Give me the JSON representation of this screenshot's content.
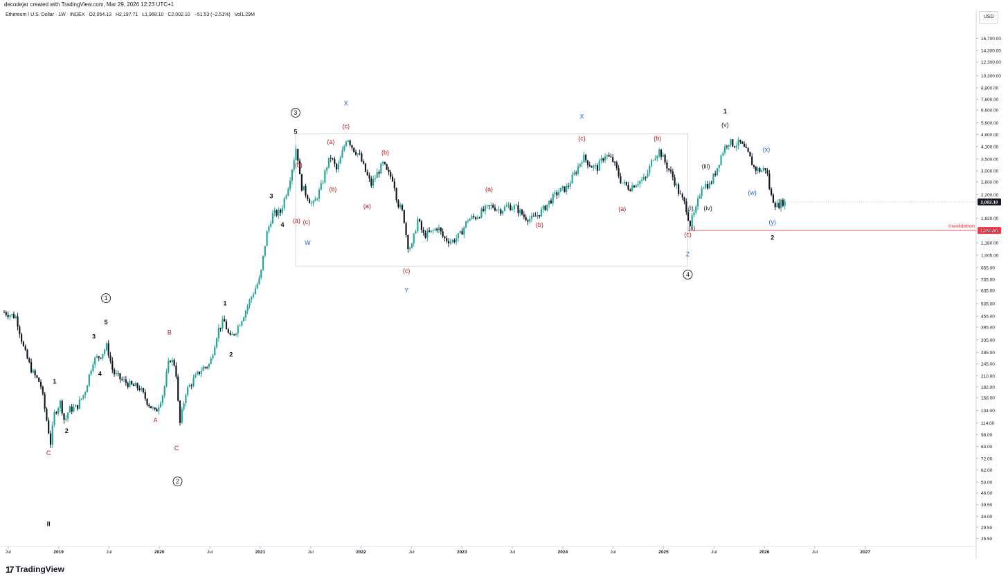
{
  "header": {
    "creator": "decodejar created with TradingView.com, Mar 29, 2026 12:23 UTC+1",
    "symbol": "Ethereum / U.S. Dollar · 1W · INDEX",
    "open": "O2,054.13",
    "high": "H2,197.71",
    "low": "L1,968.10",
    "close": "C2,002.10",
    "change": "−51.53 (−2.51%)",
    "volume": "Vol1.29M"
  },
  "currency_button": "USD",
  "brand": "TradingView",
  "colors": {
    "up_candle": "#26a69a",
    "down_candle": "#131722",
    "red_label": "#b71c1c",
    "blue_label": "#1e5bd6",
    "invalidation_line": "#f23645",
    "last_price_bg": "#131722",
    "box_stroke": "#c9ccd3"
  },
  "chart_data": {
    "type": "candlestick",
    "symbol": "Ethereum / U.S. Dollar",
    "interval": "1W",
    "y_scale": "log",
    "ylim": [
      23,
      21000
    ],
    "y_ticks": [
      {
        "v": 16700,
        "label": "16,700.00"
      },
      {
        "v": 14300,
        "label": "14,300.00"
      },
      {
        "v": 12300,
        "label": "12,300.00"
      },
      {
        "v": 10300,
        "label": "10,300.00"
      },
      {
        "v": 8800,
        "label": "8,800.00"
      },
      {
        "v": 7600,
        "label": "7,600.00"
      },
      {
        "v": 6600,
        "label": "6,600.00"
      },
      {
        "v": 5600,
        "label": "5,600.00"
      },
      {
        "v": 4800,
        "label": "4,800.00"
      },
      {
        "v": 4100,
        "label": "4,100.00"
      },
      {
        "v": 3500,
        "label": "3,500.00"
      },
      {
        "v": 3000,
        "label": "3,000.00"
      },
      {
        "v": 2600,
        "label": "2,600.00"
      },
      {
        "v": 2200,
        "label": "2,200.00"
      },
      {
        "v": 1620,
        "label": "1,620.00"
      },
      {
        "v": 1380,
        "label": "1,380.00"
      },
      {
        "v": 1180,
        "label": "1,180.00"
      },
      {
        "v": 1005,
        "label": "1,005.00"
      },
      {
        "v": 855,
        "label": "855.00"
      },
      {
        "v": 735,
        "label": "735.00"
      },
      {
        "v": 635,
        "label": "635.00"
      },
      {
        "v": 535,
        "label": "535.00"
      },
      {
        "v": 455,
        "label": "455.00"
      },
      {
        "v": 395,
        "label": "395.00"
      },
      {
        "v": 335,
        "label": "335.00"
      },
      {
        "v": 285,
        "label": "285.00"
      },
      {
        "v": 245,
        "label": "245.00"
      },
      {
        "v": 210,
        "label": "210.00"
      },
      {
        "v": 182,
        "label": "182.00"
      },
      {
        "v": 158,
        "label": "158.00"
      },
      {
        "v": 134,
        "label": "134.00"
      },
      {
        "v": 114,
        "label": "114.00"
      },
      {
        "v": 98,
        "label": "98.00"
      },
      {
        "v": 84,
        "label": "84.00"
      },
      {
        "v": 72,
        "label": "72.00"
      },
      {
        "v": 62,
        "label": "62.00"
      },
      {
        "v": 53,
        "label": "53.00"
      },
      {
        "v": 46,
        "label": "46.00"
      },
      {
        "v": 39.5,
        "label": "39.50"
      },
      {
        "v": 34,
        "label": "34.00"
      },
      {
        "v": 29.5,
        "label": "29.50"
      },
      {
        "v": 25.5,
        "label": "25.50"
      }
    ],
    "x_ticks": [
      {
        "t": 2018.5,
        "label": "Jul"
      },
      {
        "t": 2019.0,
        "label": "2019"
      },
      {
        "t": 2019.5,
        "label": "Jul"
      },
      {
        "t": 2020.0,
        "label": "2020"
      },
      {
        "t": 2020.5,
        "label": "Jul"
      },
      {
        "t": 2021.0,
        "label": "2021"
      },
      {
        "t": 2021.5,
        "label": "Jul"
      },
      {
        "t": 2022.0,
        "label": "2022"
      },
      {
        "t": 2022.5,
        "label": "Jul"
      },
      {
        "t": 2023.0,
        "label": "2023"
      },
      {
        "t": 2023.5,
        "label": "Jul"
      },
      {
        "t": 2024.0,
        "label": "2024"
      },
      {
        "t": 2024.5,
        "label": "Jul"
      },
      {
        "t": 2025.0,
        "label": "2025"
      },
      {
        "t": 2025.5,
        "label": "Jul"
      },
      {
        "t": 2026.0,
        "label": "2026"
      },
      {
        "t": 2026.5,
        "label": "Jul"
      },
      {
        "t": 2027.0,
        "label": "2027"
      }
    ],
    "xlim": [
      2018.46,
      2028.1
    ],
    "price_path": [
      [
        2018.46,
        480
      ],
      [
        2018.58,
        450
      ],
      [
        2018.66,
        290
      ],
      [
        2018.74,
        220
      ],
      [
        2018.82,
        190
      ],
      [
        2018.88,
        120
      ],
      [
        2018.92,
        88
      ],
      [
        2018.96,
        130
      ],
      [
        2019.02,
        150
      ],
      [
        2019.06,
        115
      ],
      [
        2019.1,
        135
      ],
      [
        2019.18,
        140
      ],
      [
        2019.26,
        170
      ],
      [
        2019.34,
        255
      ],
      [
        2019.42,
        275
      ],
      [
        2019.48,
        310
      ],
      [
        2019.54,
        220
      ],
      [
        2019.62,
        200
      ],
      [
        2019.72,
        185
      ],
      [
        2019.8,
        180
      ],
      [
        2019.88,
        150
      ],
      [
        2019.96,
        130
      ],
      [
        2020.04,
        170
      ],
      [
        2020.1,
        265
      ],
      [
        2020.16,
        240
      ],
      [
        2020.2,
        110
      ],
      [
        2020.26,
        170
      ],
      [
        2020.34,
        200
      ],
      [
        2020.42,
        230
      ],
      [
        2020.5,
        245
      ],
      [
        2020.58,
        380
      ],
      [
        2020.64,
        430
      ],
      [
        2020.7,
        340
      ],
      [
        2020.76,
        380
      ],
      [
        2020.84,
        470
      ],
      [
        2020.92,
        600
      ],
      [
        2021.0,
        750
      ],
      [
        2021.06,
        1300
      ],
      [
        2021.12,
        1700
      ],
      [
        2021.2,
        1750
      ],
      [
        2021.28,
        2500
      ],
      [
        2021.32,
        3200
      ],
      [
        2021.36,
        4200
      ],
      [
        2021.4,
        2500
      ],
      [
        2021.46,
        2200
      ],
      [
        2021.52,
        1900
      ],
      [
        2021.6,
        2400
      ],
      [
        2021.66,
        3200
      ],
      [
        2021.7,
        3600
      ],
      [
        2021.76,
        3000
      ],
      [
        2021.82,
        3900
      ],
      [
        2021.86,
        4700
      ],
      [
        2021.92,
        4000
      ],
      [
        2021.98,
        3700
      ],
      [
        2022.04,
        3000
      ],
      [
        2022.1,
        2500
      ],
      [
        2022.16,
        2900
      ],
      [
        2022.22,
        3300
      ],
      [
        2022.26,
        2900
      ],
      [
        2022.32,
        2700
      ],
      [
        2022.36,
        2000
      ],
      [
        2022.42,
        1700
      ],
      [
        2022.46,
        1150
      ],
      [
        2022.5,
        1100
      ],
      [
        2022.56,
        1600
      ],
      [
        2022.62,
        1300
      ],
      [
        2022.7,
        1350
      ],
      [
        2022.76,
        1450
      ],
      [
        2022.82,
        1250
      ],
      [
        2022.9,
        1200
      ],
      [
        2022.98,
        1300
      ],
      [
        2023.06,
        1600
      ],
      [
        2023.14,
        1650
      ],
      [
        2023.22,
        1800
      ],
      [
        2023.3,
        1900
      ],
      [
        2023.38,
        1800
      ],
      [
        2023.46,
        1900
      ],
      [
        2023.54,
        1850
      ],
      [
        2023.62,
        1650
      ],
      [
        2023.7,
        1600
      ],
      [
        2023.8,
        1800
      ],
      [
        2023.88,
        2050
      ],
      [
        2023.96,
        2300
      ],
      [
        2024.04,
        2400
      ],
      [
        2024.12,
        2900
      ],
      [
        2024.2,
        3600
      ],
      [
        2024.28,
        3200
      ],
      [
        2024.34,
        3100
      ],
      [
        2024.42,
        3700
      ],
      [
        2024.5,
        3400
      ],
      [
        2024.58,
        2600
      ],
      [
        2024.66,
        2400
      ],
      [
        2024.74,
        2600
      ],
      [
        2024.82,
        2700
      ],
      [
        2024.9,
        3600
      ],
      [
        2024.96,
        3900
      ],
      [
        2025.02,
        3300
      ],
      [
        2025.1,
        2700
      ],
      [
        2025.16,
        2200
      ],
      [
        2025.22,
        1900
      ],
      [
        2025.26,
        1500
      ],
      [
        2025.32,
        1800
      ],
      [
        2025.38,
        2500
      ],
      [
        2025.46,
        2500
      ],
      [
        2025.52,
        3000
      ],
      [
        2025.58,
        3800
      ],
      [
        2025.64,
        4400
      ],
      [
        2025.7,
        4200
      ],
      [
        2025.76,
        4300
      ],
      [
        2025.84,
        3700
      ],
      [
        2025.9,
        3100
      ],
      [
        2025.96,
        3000
      ],
      [
        2026.02,
        3100
      ],
      [
        2026.06,
        2200
      ],
      [
        2026.12,
        1900
      ],
      [
        2026.18,
        2000
      ],
      [
        2026.22,
        2002
      ]
    ],
    "last_price": {
      "value": 2002.1,
      "label": "2,002.10"
    },
    "invalidation": {
      "value": 1384.66,
      "label": "1,384.66",
      "text": "Invalidation",
      "from_t": 2025.24
    },
    "range_box": {
      "t0": 2021.35,
      "t1": 2025.24,
      "top": 4850,
      "bottom": 870
    },
    "labels": [
      {
        "t": 2018.9,
        "v": 30,
        "text": "II",
        "color": "black",
        "bold": true
      },
      {
        "t": 2018.9,
        "v": 75,
        "text": "C",
        "color": "red"
      },
      {
        "t": 2018.96,
        "v": 190,
        "text": "1",
        "color": "black",
        "bold": true
      },
      {
        "t": 2019.08,
        "v": 100,
        "text": "2",
        "color": "black",
        "bold": true
      },
      {
        "t": 2019.35,
        "v": 340,
        "text": "3",
        "color": "black",
        "bold": true
      },
      {
        "t": 2019.41,
        "v": 210,
        "text": "4",
        "color": "black",
        "bold": true
      },
      {
        "t": 2019.47,
        "v": 410,
        "text": "5",
        "color": "black",
        "bold": true
      },
      {
        "t": 2019.47,
        "v": 560,
        "text": "1",
        "color": "black",
        "circle": true
      },
      {
        "t": 2019.96,
        "v": 115,
        "text": "A",
        "color": "red"
      },
      {
        "t": 2020.1,
        "v": 360,
        "text": "B",
        "color": "red"
      },
      {
        "t": 2020.17,
        "v": 80,
        "text": "C",
        "color": "red"
      },
      {
        "t": 2020.18,
        "v": 52,
        "text": "2",
        "color": "black",
        "circle": true
      },
      {
        "t": 2020.65,
        "v": 525,
        "text": "1",
        "color": "black",
        "bold": true
      },
      {
        "t": 2020.71,
        "v": 270,
        "text": "2",
        "color": "black",
        "bold": true
      },
      {
        "t": 2021.11,
        "v": 2100,
        "text": "3",
        "color": "black",
        "bold": true
      },
      {
        "t": 2021.22,
        "v": 1450,
        "text": "4",
        "color": "black",
        "bold": true
      },
      {
        "t": 2021.35,
        "v": 4850,
        "text": "5",
        "color": "black",
        "bold": true
      },
      {
        "t": 2021.35,
        "v": 6200,
        "text": "3",
        "color": "black",
        "circle": true
      },
      {
        "t": 2021.38,
        "v": 3150,
        "text": "(b)",
        "color": "red"
      },
      {
        "t": 2021.36,
        "v": 1530,
        "text": "(a)",
        "color": "red"
      },
      {
        "t": 2021.46,
        "v": 1500,
        "text": "(c)",
        "color": "red"
      },
      {
        "t": 2021.47,
        "v": 1150,
        "text": "W",
        "color": "blue"
      },
      {
        "t": 2021.7,
        "v": 4250,
        "text": "(a)",
        "color": "red"
      },
      {
        "t": 2021.72,
        "v": 2300,
        "text": "(b)",
        "color": "red"
      },
      {
        "t": 2021.85,
        "v": 5200,
        "text": "(c)",
        "color": "red"
      },
      {
        "t": 2021.85,
        "v": 7000,
        "text": "X",
        "color": "blue"
      },
      {
        "t": 2022.24,
        "v": 3700,
        "text": "(b)",
        "color": "red"
      },
      {
        "t": 2022.06,
        "v": 1850,
        "text": "(a)",
        "color": "red"
      },
      {
        "t": 2022.45,
        "v": 800,
        "text": "(c)",
        "color": "red"
      },
      {
        "t": 2022.45,
        "v": 620,
        "text": "Y",
        "color": "blue"
      },
      {
        "t": 2023.27,
        "v": 2300,
        "text": "(a)",
        "color": "red"
      },
      {
        "t": 2023.77,
        "v": 1450,
        "text": "(b)",
        "color": "red"
      },
      {
        "t": 2024.19,
        "v": 4450,
        "text": "(c)",
        "color": "red"
      },
      {
        "t": 2024.19,
        "v": 5900,
        "text": "X",
        "color": "blue"
      },
      {
        "t": 2024.59,
        "v": 1780,
        "text": "(a)",
        "color": "red"
      },
      {
        "t": 2024.94,
        "v": 4450,
        "text": "(b)",
        "color": "red"
      },
      {
        "t": 2025.24,
        "v": 1280,
        "text": "(c)",
        "color": "red"
      },
      {
        "t": 2025.24,
        "v": 990,
        "text": "Z",
        "color": "blue"
      },
      {
        "t": 2025.24,
        "v": 760,
        "text": "4",
        "color": "black",
        "circle": true
      },
      {
        "t": 2025.27,
        "v": 1800,
        "text": "(i)",
        "color": "black"
      },
      {
        "t": 2025.28,
        "v": 1390,
        "text": "(ii)",
        "color": "black"
      },
      {
        "t": 2025.42,
        "v": 3100,
        "text": "(iii)",
        "color": "black"
      },
      {
        "t": 2025.44,
        "v": 1800,
        "text": "(iv)",
        "color": "black"
      },
      {
        "t": 2025.61,
        "v": 5300,
        "text": "(v)",
        "color": "black"
      },
      {
        "t": 2025.61,
        "v": 6300,
        "text": "1",
        "color": "black",
        "bold": true
      },
      {
        "t": 2025.88,
        "v": 2200,
        "text": "(w)",
        "color": "blue"
      },
      {
        "t": 2026.02,
        "v": 3850,
        "text": "(x)",
        "color": "blue"
      },
      {
        "t": 2026.08,
        "v": 1500,
        "text": "(y)",
        "color": "blue"
      },
      {
        "t": 2026.08,
        "v": 1230,
        "text": "2",
        "color": "black",
        "bold": true
      }
    ]
  }
}
